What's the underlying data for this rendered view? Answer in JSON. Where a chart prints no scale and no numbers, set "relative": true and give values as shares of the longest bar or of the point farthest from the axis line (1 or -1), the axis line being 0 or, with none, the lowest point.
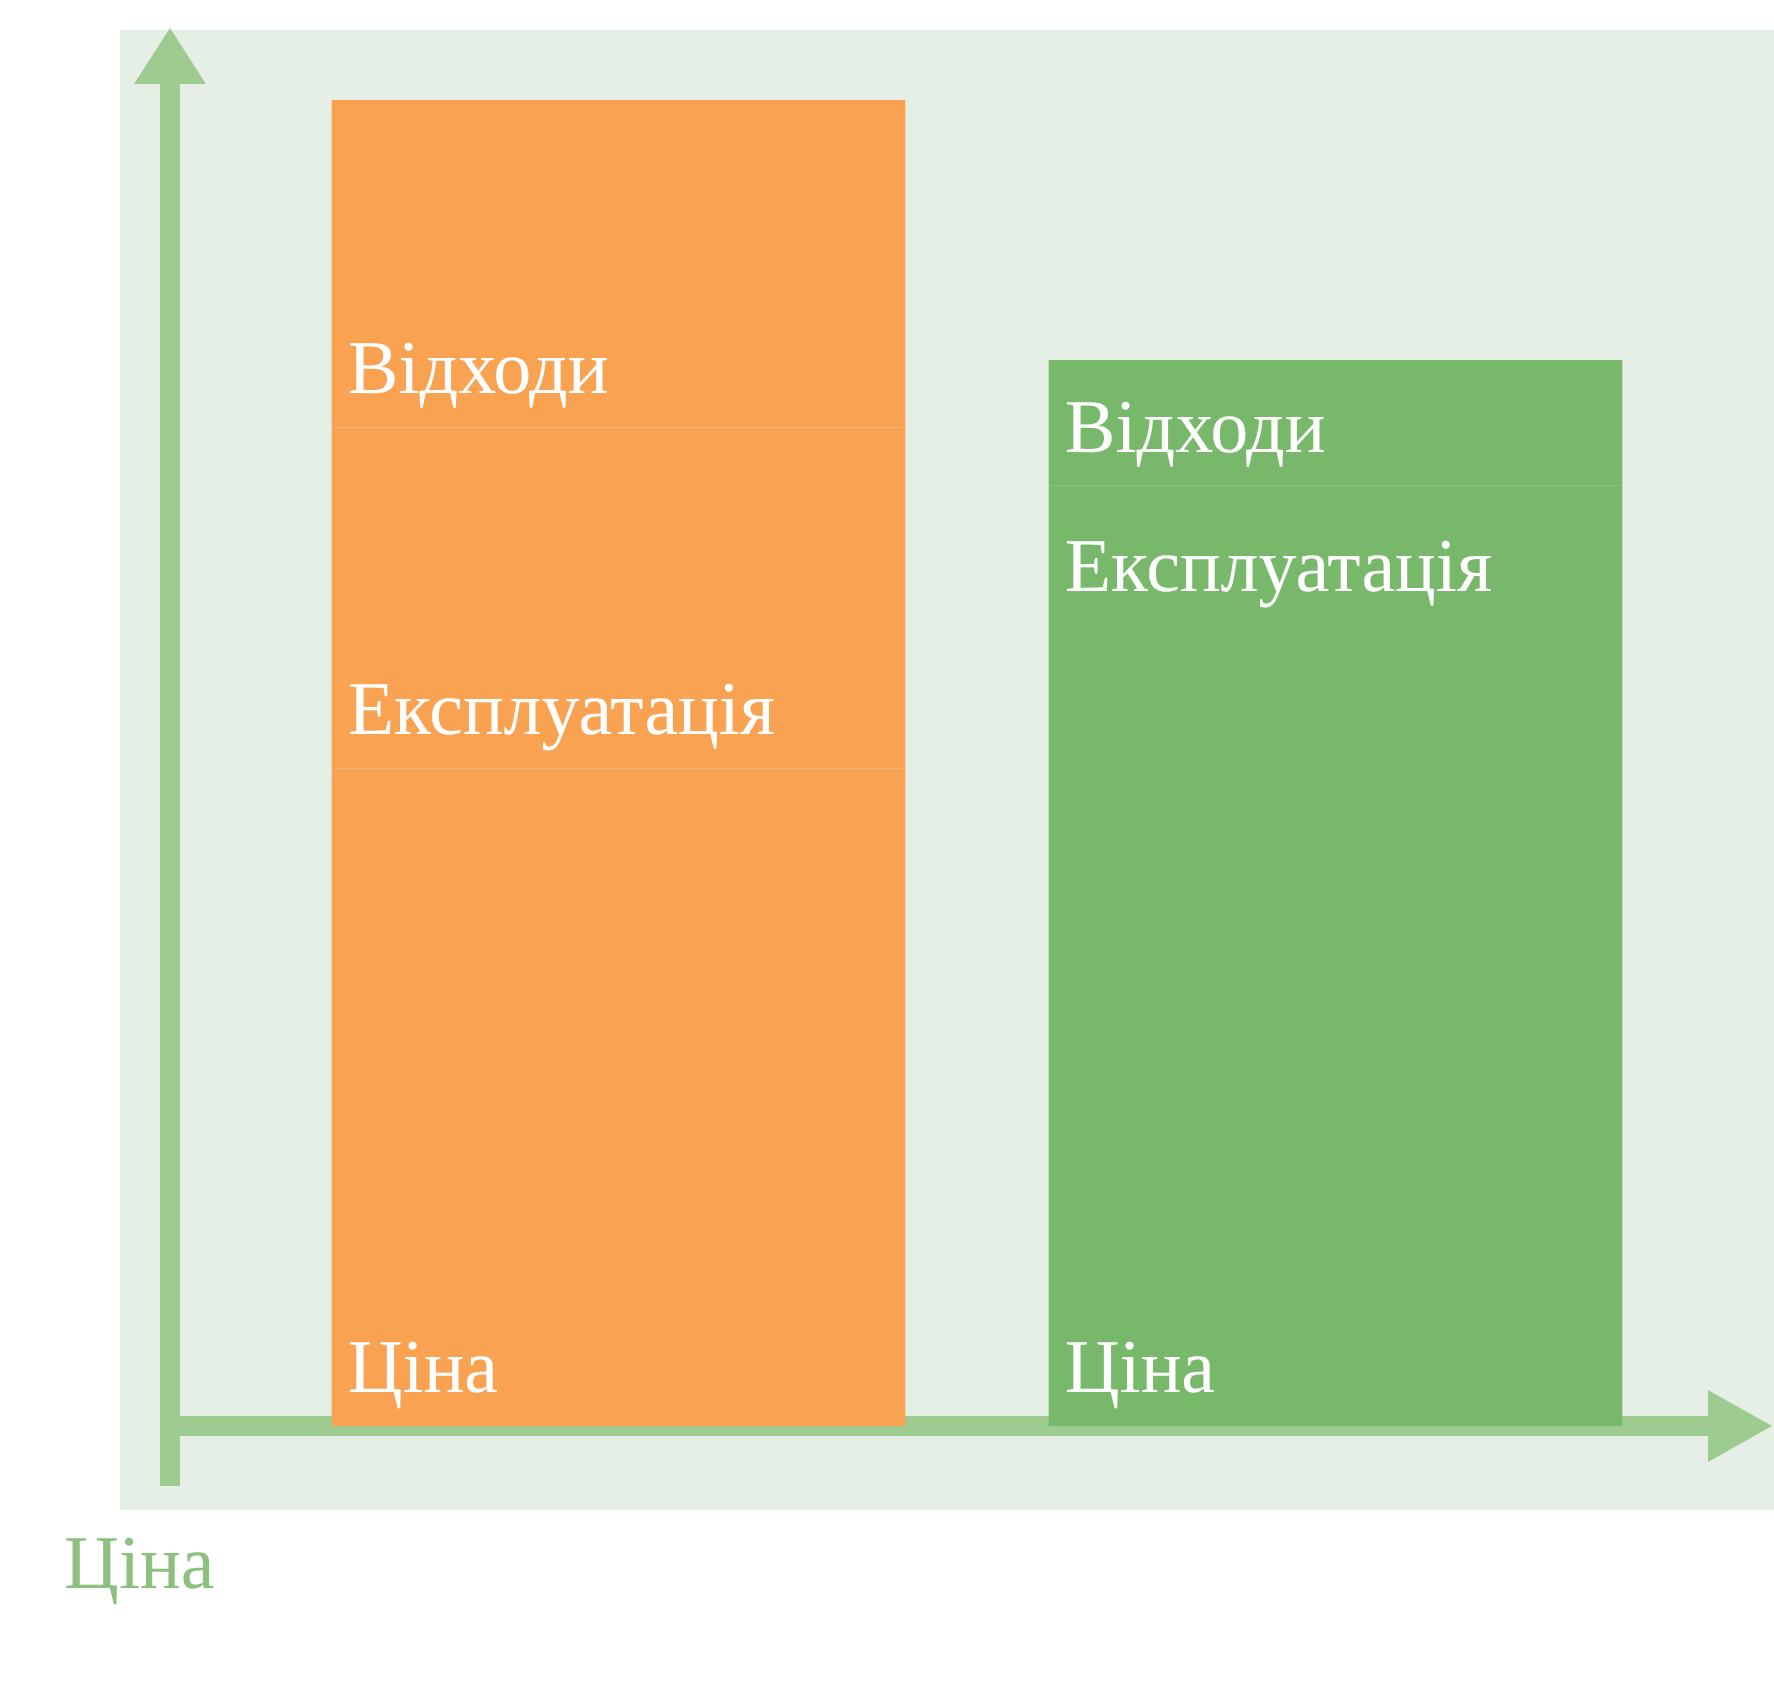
{
  "chart_data": {
    "type": "bar",
    "stacked": true,
    "relative": true,
    "legend": false,
    "annotations": [
      "Ціна"
    ],
    "categories": [
      null,
      null
    ],
    "series": [
      {
        "name": "Ціна",
        "colors": [
          "#f9a352",
          "#77b86a"
        ],
        "values": [
          0.496,
          0.604
        ]
      },
      {
        "name": "Експлуатація",
        "colors": [
          "#f9a352",
          "#77b86a"
        ],
        "values": [
          0.257,
          0.105
        ]
      },
      {
        "name": "Відходи",
        "colors": [
          "#f9a352",
          "#77b86a"
        ],
        "values": [
          0.247,
          0.095
        ]
      }
    ]
  }
}
